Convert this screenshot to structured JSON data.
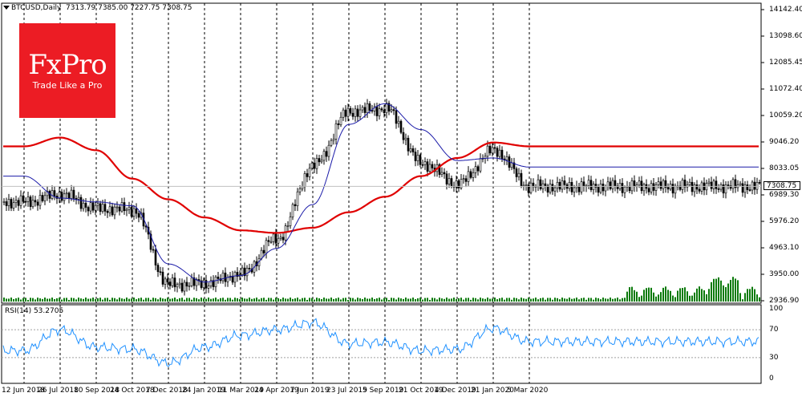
{
  "header": {
    "symbol": "BTCUSD,Daily",
    "ohlc": "7313.79 7385.00 7227.75 7308.75"
  },
  "rsi_header": "RSI(14) 53.2705",
  "logo": {
    "brand": "FxPro",
    "slogan": "Trade Like a Pro"
  },
  "price_axis_labels": [
    "14142.40",
    "13098.60",
    "12085.45",
    "11072.40",
    "10059.20",
    "9046.20",
    "8033.05",
    "6989.30",
    "5976.20",
    "4963.10",
    "3950.00",
    "2936.90"
  ],
  "current_price_tag": "7308.75",
  "rsi_axis_labels": [
    "100",
    "70",
    "30",
    "0"
  ],
  "time_axis_labels": [
    "12 Jun 2018",
    "26 Jul 2018",
    "10 Sep 2018",
    "24 Oct 2018",
    "7 Dec 2018",
    "24 Jan 2019",
    "11 Mar 2019",
    "24 Apr 2019",
    "7 Jun 2019",
    "23 Jul 2019",
    "5 Sep 2019",
    "21 Oct 2019",
    "4 Dec 2019",
    "21 Jan 2020",
    "5 Mar 2020"
  ],
  "colors": {
    "candles": "#000000",
    "ma_slow": "#e00000",
    "ma_fast": "#1a1aa8",
    "rsi_line": "#1e90ff",
    "volume": "#0a7a0a",
    "logo_bg": "#ec1c24"
  },
  "chart_data": [
    {
      "type": "line",
      "title": "BTCUSD,Daily",
      "subtitle": "7313.79 7385.00 7227.75 7308.75",
      "ylim": [
        2936.9,
        14142.4
      ],
      "x": [
        "12 Jun 2018",
        "26 Jul 2018",
        "10 Sep 2018",
        "24 Oct 2018",
        "7 Dec 2018",
        "24 Jan 2019",
        "11 Mar 2019",
        "24 Apr 2019",
        "7 Jun 2019",
        "23 Jul 2019",
        "5 Sep 2019",
        "21 Oct 2019",
        "4 Dec 2019",
        "21 Jan 2020",
        "5 Mar 2020"
      ],
      "series": [
        {
          "values": [
            6700,
            7000,
            6450,
            6400,
            3500,
            3550,
            3900,
            5300,
            8100,
            10200,
            10300,
            8200,
            7400,
            8700,
            7300
          ]
        },
        {
          "values": [
            7700,
            6850,
            6700,
            6550,
            4300,
            3600,
            3850,
            4900,
            6600,
            9700,
            10500,
            9500,
            8300,
            8400,
            8050
          ]
        },
        {
          "values": [
            8850,
            9190,
            8700,
            7600,
            6800,
            6100,
            5600,
            5500,
            5700,
            6300,
            6900,
            7700,
            8400,
            9000,
            8850
          ]
        }
      ],
      "grid": true
    },
    {
      "type": "line",
      "title": "RSI(14) 53.2705",
      "ylim": [
        0,
        100
      ],
      "x": [
        "12 Jun 2018",
        "26 Jul 2018",
        "10 Sep 2018",
        "24 Oct 2018",
        "7 Dec 2018",
        "24 Jan 2019",
        "11 Mar 2019",
        "24 Apr 2019",
        "7 Jun 2019",
        "23 Jul 2019",
        "5 Sep 2019",
        "21 Oct 2019",
        "4 Dec 2019",
        "21 Jan 2020",
        "5 Mar 2020"
      ],
      "series": [
        {
          "values": [
            40,
            70,
            45,
            42,
            22,
            45,
            62,
            70,
            80,
            50,
            52,
            40,
            42,
            72,
            53
          ]
        }
      ],
      "levels": [
        70,
        30
      ],
      "grid": true
    }
  ]
}
